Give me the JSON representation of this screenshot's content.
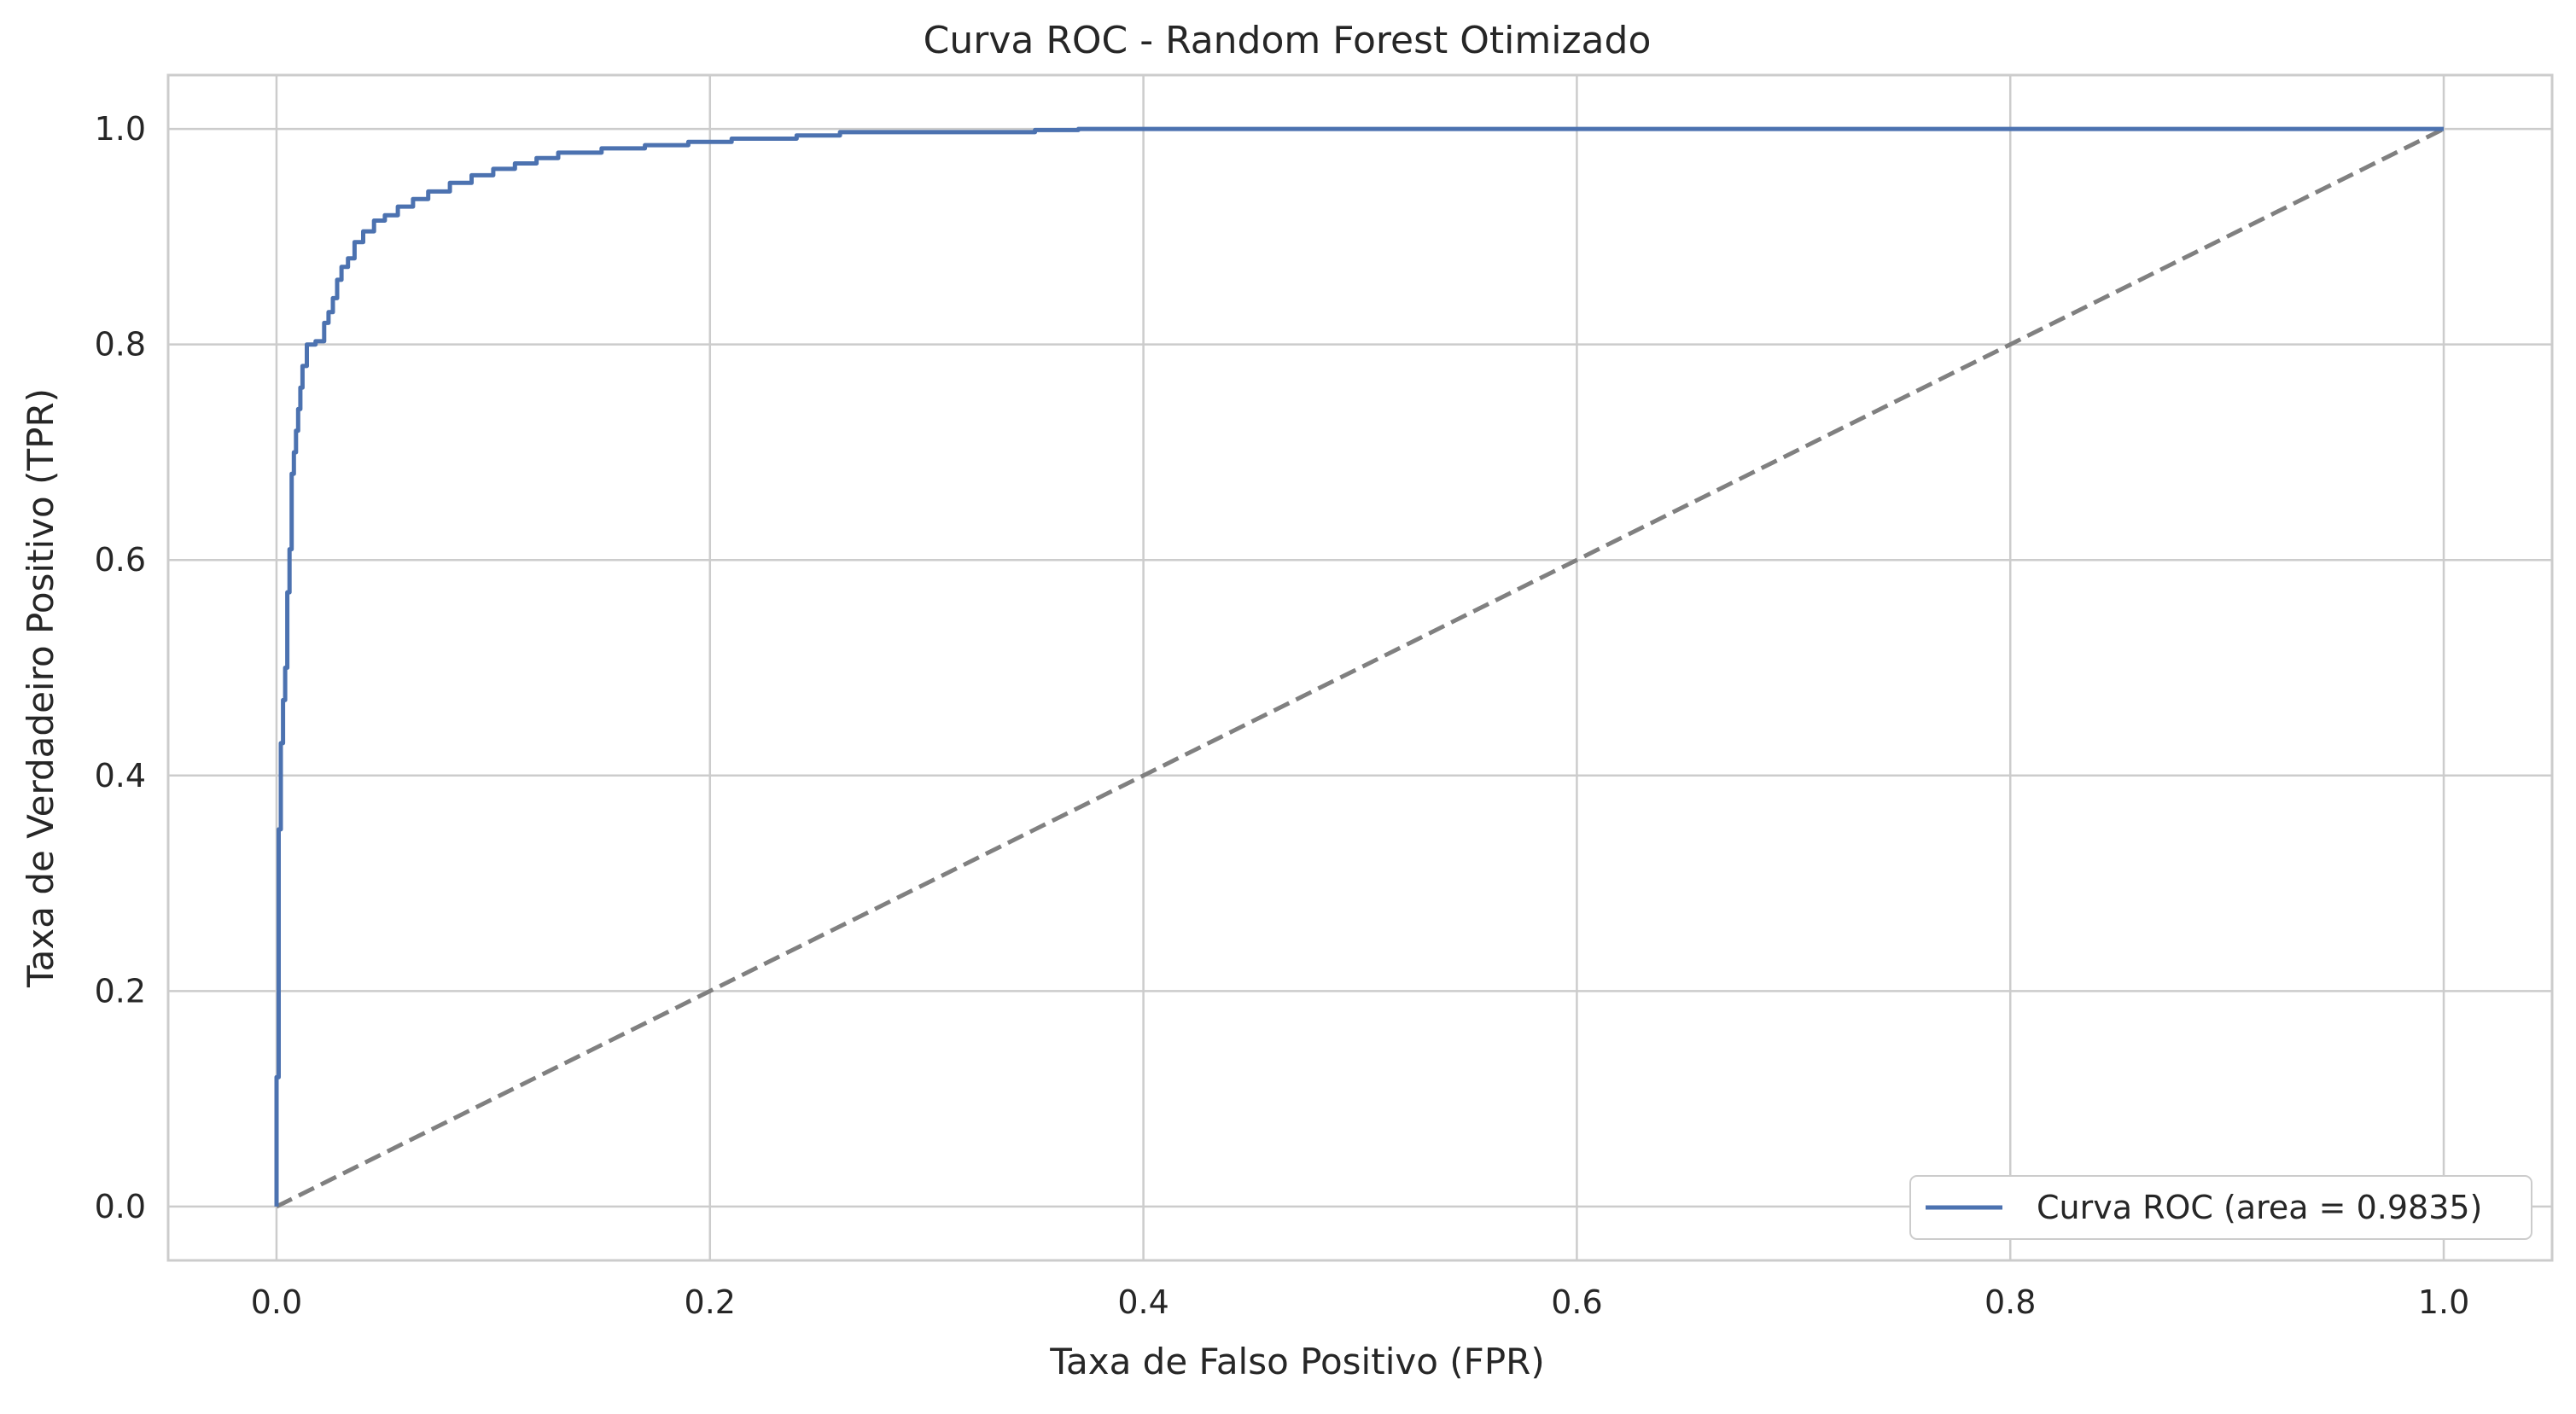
{
  "chart_data": {
    "type": "line",
    "title": "Curva ROC - Random Forest Otimizado",
    "xlabel": "Taxa de Falso Positivo (FPR)",
    "ylabel": "Taxa de Verdadeiro Positivo (TPR)",
    "xlim": [
      -0.05,
      1.05
    ],
    "ylim": [
      -0.05,
      1.05
    ],
    "xticks": [
      0.0,
      0.2,
      0.4,
      0.6,
      0.8,
      1.0
    ],
    "yticks": [
      0.0,
      0.2,
      0.4,
      0.6,
      0.8,
      1.0
    ],
    "xtick_labels": [
      "0.0",
      "0.2",
      "0.4",
      "0.6",
      "0.8",
      "1.0"
    ],
    "ytick_labels": [
      "0.0",
      "0.2",
      "0.4",
      "0.6",
      "0.8",
      "1.0"
    ],
    "grid": true,
    "legend_position": "lower-right",
    "series": [
      {
        "name": "Curva ROC (area = 0.9835)",
        "color": "#4c72b0",
        "style": "solid",
        "x": [
          0.0,
          0.0,
          0.001,
          0.001,
          0.002,
          0.002,
          0.003,
          0.003,
          0.004,
          0.004,
          0.005,
          0.005,
          0.006,
          0.006,
          0.007,
          0.007,
          0.008,
          0.008,
          0.009,
          0.009,
          0.01,
          0.01,
          0.011,
          0.011,
          0.012,
          0.012,
          0.014,
          0.014,
          0.016,
          0.016,
          0.018,
          0.018,
          0.022,
          0.022,
          0.024,
          0.024,
          0.026,
          0.026,
          0.028,
          0.028,
          0.03,
          0.03,
          0.033,
          0.033,
          0.036,
          0.036,
          0.04,
          0.04,
          0.045,
          0.045,
          0.05,
          0.05,
          0.056,
          0.056,
          0.063,
          0.063,
          0.07,
          0.07,
          0.08,
          0.08,
          0.09,
          0.09,
          0.1,
          0.1,
          0.11,
          0.11,
          0.12,
          0.12,
          0.13,
          0.13,
          0.15,
          0.15,
          0.17,
          0.17,
          0.19,
          0.19,
          0.21,
          0.21,
          0.24,
          0.24,
          0.26,
          0.26,
          0.35,
          0.35,
          0.37,
          0.37,
          1.0
        ],
        "y": [
          0.0,
          0.12,
          0.12,
          0.35,
          0.35,
          0.43,
          0.43,
          0.47,
          0.47,
          0.5,
          0.5,
          0.57,
          0.57,
          0.61,
          0.61,
          0.68,
          0.68,
          0.7,
          0.7,
          0.72,
          0.72,
          0.74,
          0.74,
          0.76,
          0.76,
          0.78,
          0.78,
          0.8,
          0.8,
          0.8,
          0.8,
          0.803,
          0.803,
          0.82,
          0.82,
          0.83,
          0.83,
          0.843,
          0.843,
          0.86,
          0.86,
          0.872,
          0.872,
          0.88,
          0.88,
          0.895,
          0.895,
          0.905,
          0.905,
          0.915,
          0.915,
          0.92,
          0.92,
          0.928,
          0.928,
          0.935,
          0.935,
          0.942,
          0.942,
          0.95,
          0.95,
          0.957,
          0.957,
          0.963,
          0.963,
          0.968,
          0.968,
          0.973,
          0.973,
          0.978,
          0.978,
          0.982,
          0.982,
          0.985,
          0.985,
          0.988,
          0.988,
          0.991,
          0.991,
          0.994,
          0.994,
          0.997,
          0.997,
          0.999,
          0.999,
          1.0,
          1.0
        ]
      },
      {
        "color": "#808080",
        "style": "dashed",
        "x": [
          0.0,
          1.0
        ],
        "y": [
          0.0,
          1.0
        ]
      }
    ]
  }
}
